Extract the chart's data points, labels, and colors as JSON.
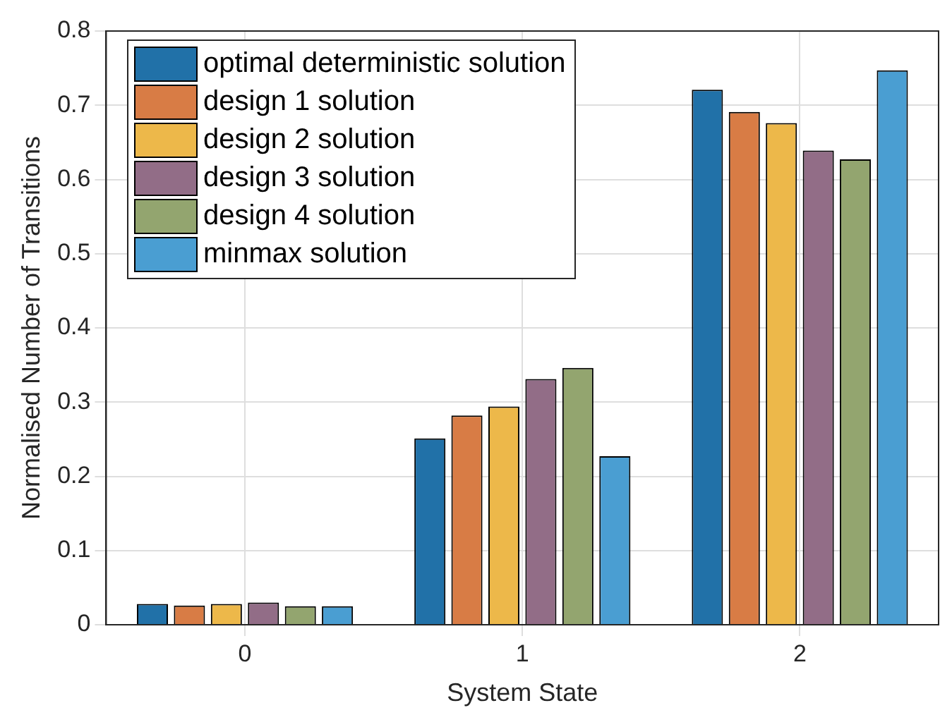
{
  "chart_data": {
    "type": "bar",
    "xlabel": "System State",
    "ylabel": "Normalised Number of Transitions",
    "categories": [
      "0",
      "1",
      "2"
    ],
    "series": [
      {
        "name": "optimal deterministic solution",
        "color": "#2171a8",
        "values": [
          0.028,
          0.251,
          0.721
        ]
      },
      {
        "name": "design 1 solution",
        "color": "#d87c45",
        "values": [
          0.026,
          0.282,
          0.691
        ]
      },
      {
        "name": "design 2 solution",
        "color": "#edb84a",
        "values": [
          0.028,
          0.294,
          0.676
        ]
      },
      {
        "name": "design 3 solution",
        "color": "#926d87",
        "values": [
          0.03,
          0.331,
          0.639
        ]
      },
      {
        "name": "design 4 solution",
        "color": "#93a56f",
        "values": [
          0.025,
          0.346,
          0.627
        ]
      },
      {
        "name": "minmax solution",
        "color": "#4a9ed2",
        "values": [
          0.025,
          0.227,
          0.747
        ]
      }
    ],
    "ylim": [
      0,
      0.8
    ],
    "yticks": [
      0,
      0.1,
      0.2,
      0.3,
      0.4,
      0.5,
      0.6,
      0.7,
      0.8
    ],
    "grid": true,
    "legend": "top left"
  }
}
